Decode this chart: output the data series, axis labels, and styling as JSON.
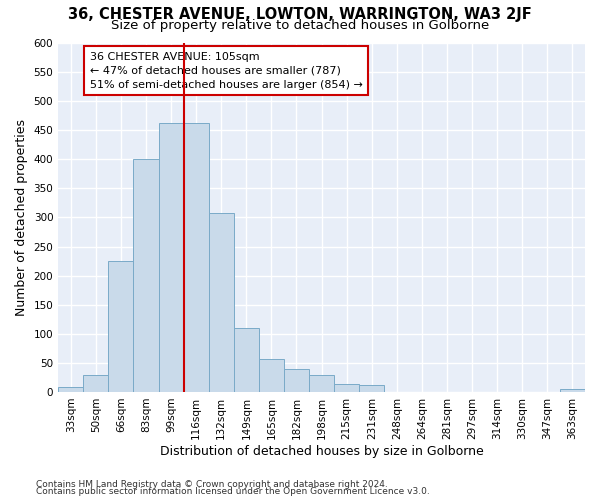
{
  "title": "36, CHESTER AVENUE, LOWTON, WARRINGTON, WA3 2JF",
  "subtitle": "Size of property relative to detached houses in Golborne",
  "xlabel": "Distribution of detached houses by size in Golborne",
  "ylabel": "Number of detached properties",
  "categories": [
    "33sqm",
    "50sqm",
    "66sqm",
    "83sqm",
    "99sqm",
    "116sqm",
    "132sqm",
    "149sqm",
    "165sqm",
    "182sqm",
    "198sqm",
    "215sqm",
    "231sqm",
    "248sqm",
    "264sqm",
    "281sqm",
    "297sqm",
    "314sqm",
    "330sqm",
    "347sqm",
    "363sqm"
  ],
  "values": [
    8,
    30,
    225,
    400,
    462,
    462,
    308,
    110,
    56,
    40,
    30,
    13,
    12,
    0,
    0,
    0,
    0,
    0,
    0,
    0,
    5
  ],
  "bar_color": "#c9daea",
  "bar_edge_color": "#7aaac8",
  "vline_color": "#cc0000",
  "annotation_text": "36 CHESTER AVENUE: 105sqm\n← 47% of detached houses are smaller (787)\n51% of semi-detached houses are larger (854) →",
  "annotation_box_facecolor": "#ffffff",
  "annotation_box_edgecolor": "#cc0000",
  "ylim": [
    0,
    600
  ],
  "yticks": [
    0,
    50,
    100,
    150,
    200,
    250,
    300,
    350,
    400,
    450,
    500,
    550,
    600
  ],
  "footer1": "Contains HM Land Registry data © Crown copyright and database right 2024.",
  "footer2": "Contains public sector information licensed under the Open Government Licence v3.0.",
  "title_fontsize": 10.5,
  "subtitle_fontsize": 9.5,
  "axis_label_fontsize": 9,
  "tick_fontsize": 7.5,
  "annotation_fontsize": 8,
  "footer_fontsize": 6.5,
  "bg_color": "#ffffff",
  "plot_bg_color": "#e8eef8",
  "grid_color": "#ffffff",
  "grid_linewidth": 1.0
}
